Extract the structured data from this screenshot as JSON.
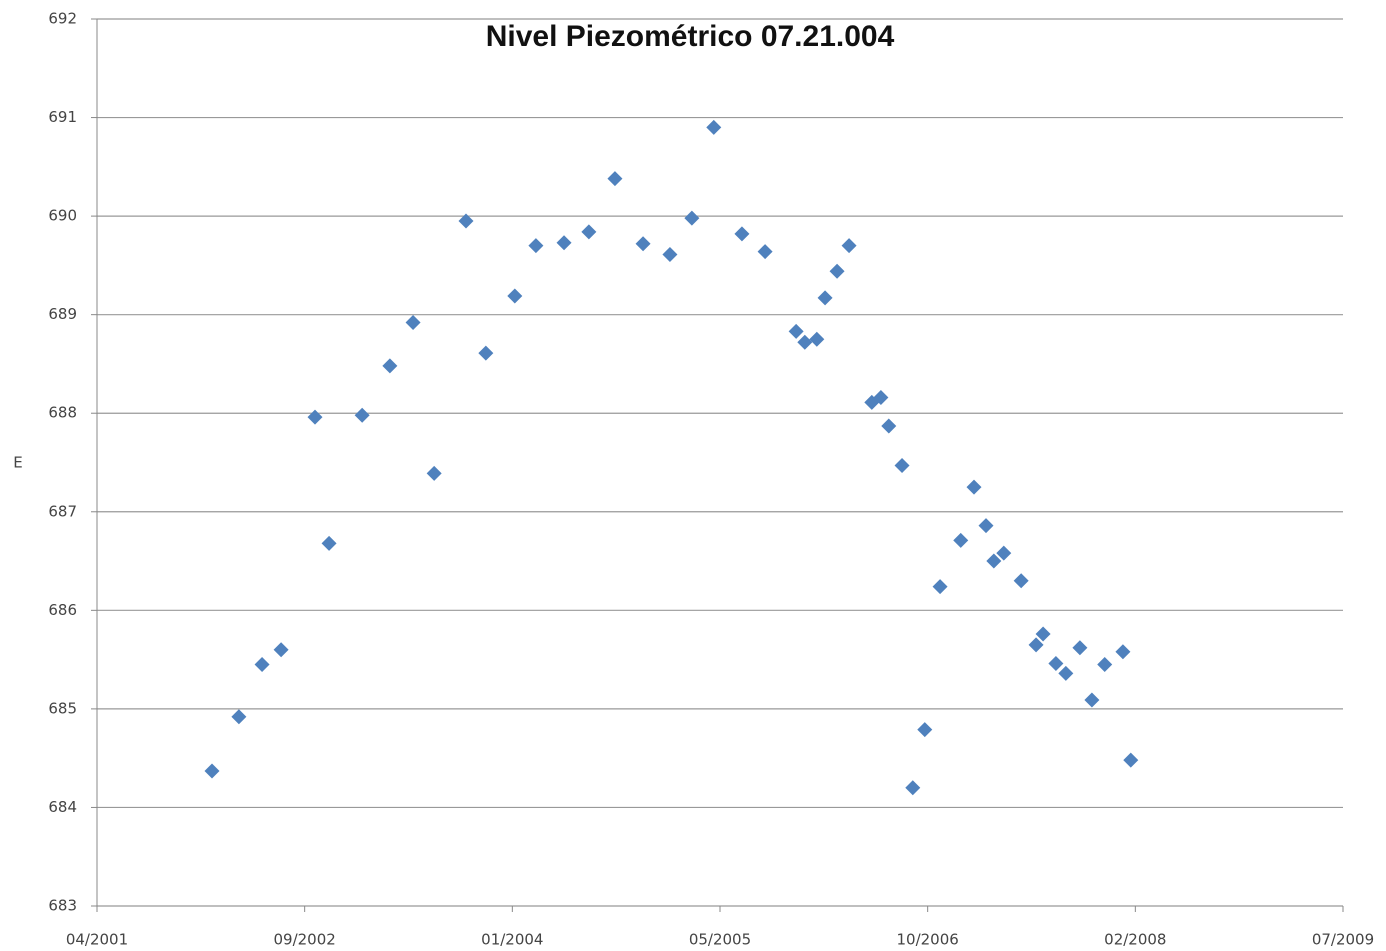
{
  "chart_data": {
    "type": "scatter",
    "title": "Nivel Piezométrico 07.21.004",
    "y_label": "E",
    "color": "#4f81bd",
    "grid": true,
    "xlim": [
      36982,
      39994
    ],
    "xticks": [
      {
        "value": 36982,
        "label": "04/2001"
      },
      {
        "value": 37484,
        "label": "09/2002"
      },
      {
        "value": 37986,
        "label": "01/2004"
      },
      {
        "value": 38488,
        "label": "05/2005"
      },
      {
        "value": 38990,
        "label": "10/2006"
      },
      {
        "value": 39492,
        "label": "02/2008"
      },
      {
        "value": 39994,
        "label": "07/2009"
      }
    ],
    "ylim": [
      683,
      692
    ],
    "yticks": [
      683,
      684,
      685,
      686,
      687,
      688,
      689,
      690,
      691,
      692
    ],
    "x": [
      37260,
      37325,
      37381,
      37427,
      37509,
      37543,
      37623,
      37690,
      37746,
      37797,
      37874,
      37922,
      37992,
      38043,
      38111,
      38171,
      38234,
      38302,
      38367,
      38420,
      38473,
      38541,
      38597,
      38672,
      38693,
      38722,
      38742,
      38771,
      38800,
      38855,
      38877,
      38896,
      38928,
      38954,
      38983,
      39020,
      39070,
      39102,
      39131,
      39150,
      39174,
      39216,
      39252,
      39269,
      39300,
      39324,
      39358,
      39387,
      39418,
      39462,
      39481
    ],
    "values": [
      684.37,
      684.92,
      685.45,
      685.6,
      687.96,
      686.68,
      687.98,
      688.48,
      688.92,
      687.39,
      689.95,
      688.61,
      689.19,
      689.7,
      689.73,
      689.84,
      690.38,
      689.72,
      689.61,
      689.98,
      690.9,
      689.82,
      689.64,
      688.83,
      688.72,
      688.75,
      689.17,
      689.44,
      689.7,
      688.11,
      688.16,
      687.87,
      687.47,
      684.2,
      684.79,
      686.24,
      686.71,
      687.25,
      686.86,
      686.5,
      686.58,
      686.3,
      685.65,
      685.76,
      685.46,
      685.36,
      685.62,
      685.09,
      685.45,
      685.58,
      684.48
    ]
  }
}
